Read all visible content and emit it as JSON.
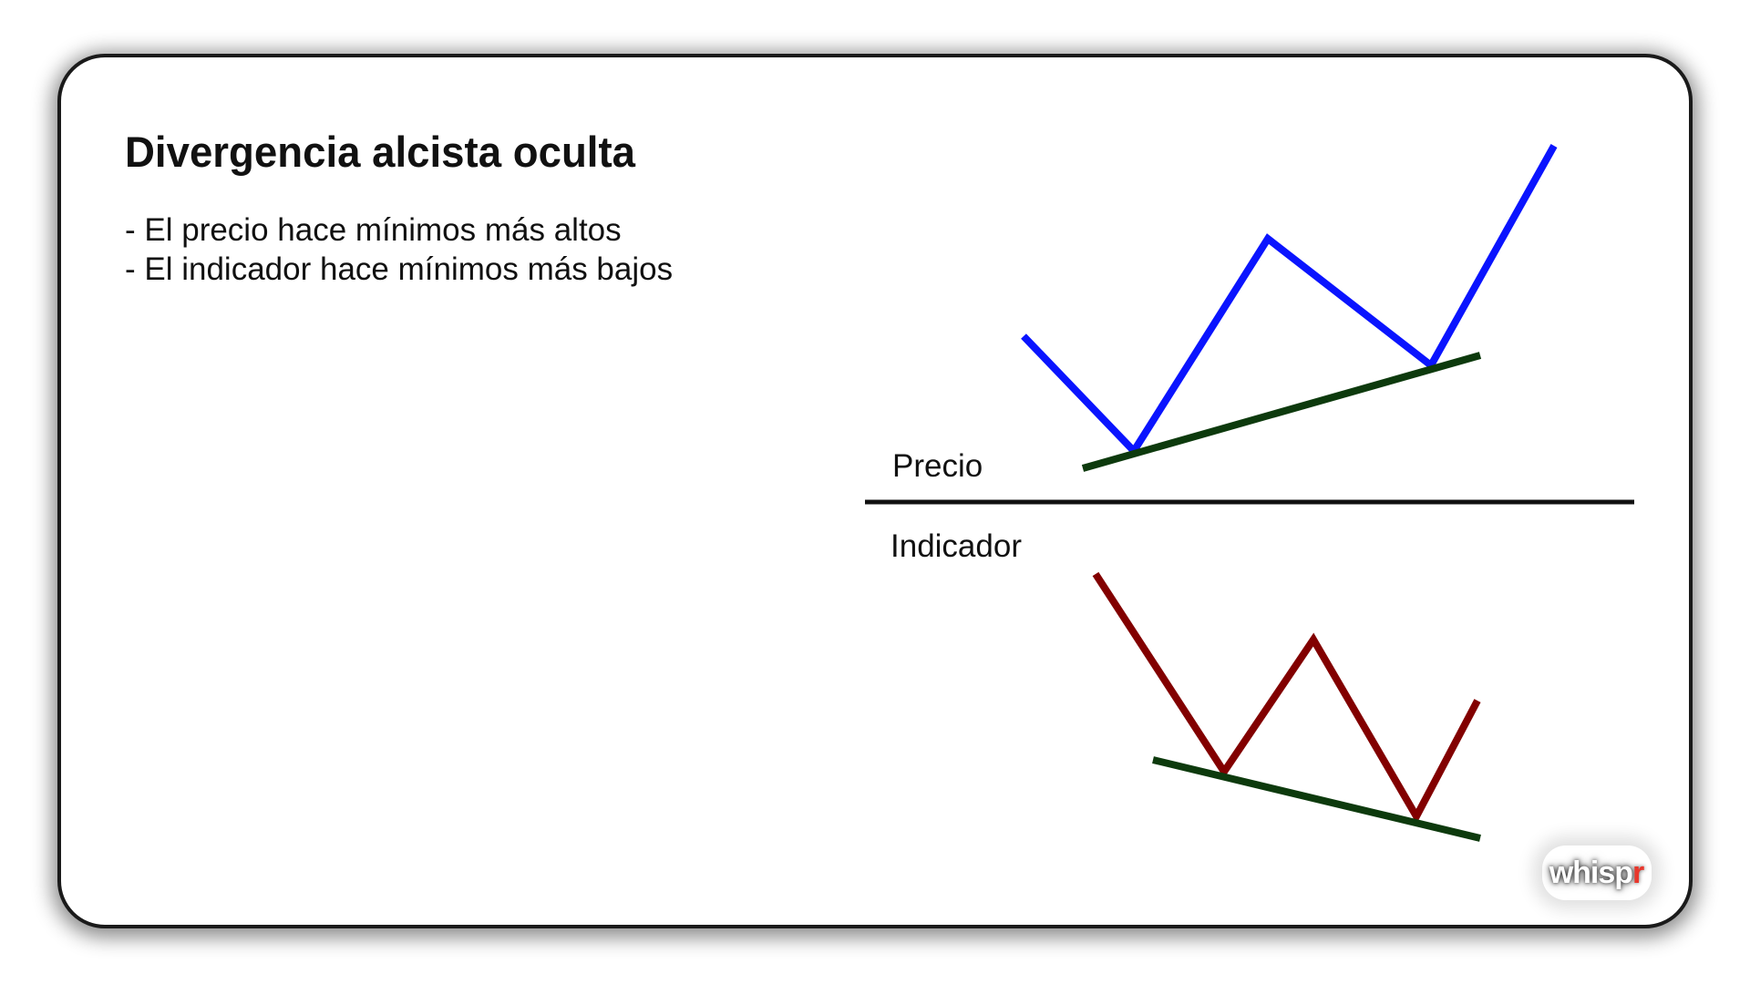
{
  "title": "Divergencia alcista oculta",
  "bullets": [
    "- El precio hace mínimos más altos",
    "- El indicador hace mínimos más bajos"
  ],
  "panels": {
    "top_label": "Precio",
    "bottom_label": "Indicador"
  },
  "logo": {
    "text": "whisp",
    "accent": "r"
  },
  "colors": {
    "price_line": "#0a14ff",
    "indicator_line": "#820000",
    "trendline": "#0d3a0d",
    "divider": "#111111",
    "logo_accent": "#e8372c"
  },
  "icons": [
    "whispr-logo"
  ]
}
